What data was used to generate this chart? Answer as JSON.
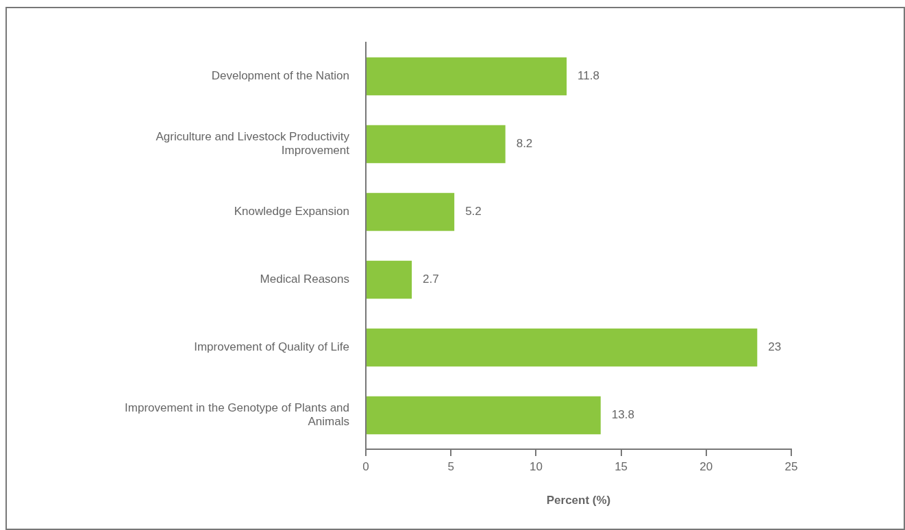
{
  "chart_data": {
    "type": "bar",
    "orientation": "horizontal",
    "xlabel": "Percent (%)",
    "categories": [
      "Development of the Nation",
      "Agriculture and Livestock Productivity Improvement",
      "Knowledge Expansion",
      "Medical Reasons",
      "Improvement of Quality of Life",
      "Improvement in the Genotype of Plants and Animals"
    ],
    "values": [
      11.8,
      8.2,
      5.2,
      2.7,
      23,
      13.8
    ],
    "color": "#8cc63f",
    "xlim": [
      0,
      25
    ],
    "xticks": [
      0,
      5,
      10,
      15,
      20,
      25
    ],
    "data_labels": true
  }
}
